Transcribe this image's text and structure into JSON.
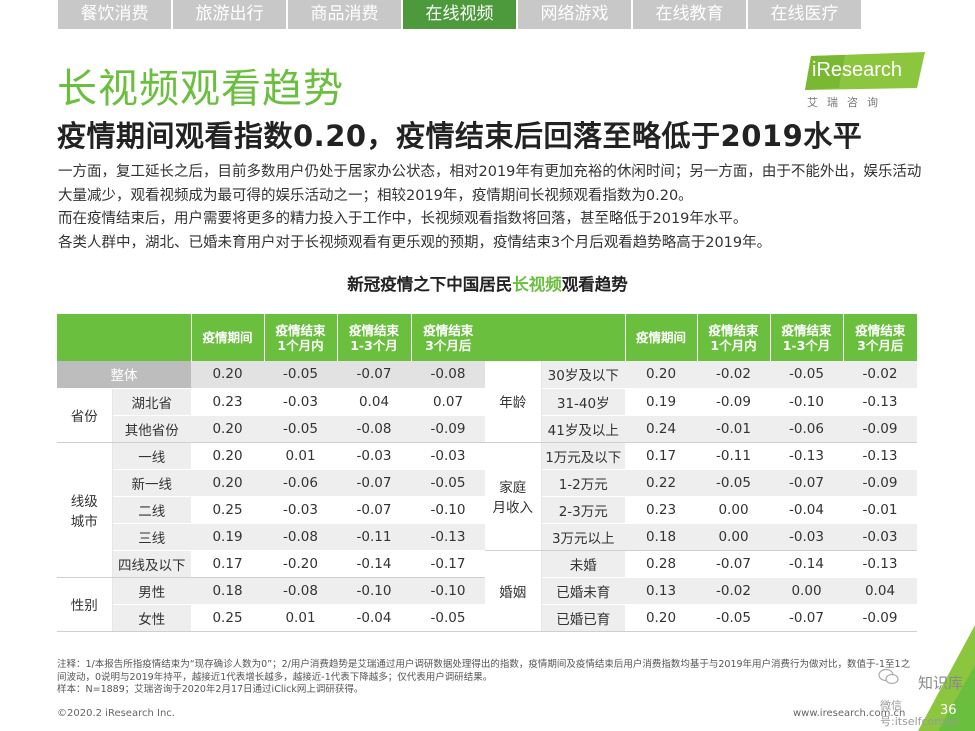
{
  "tabs": [
    "餐饮消费",
    "旅游出行",
    "商品消费",
    "在线视频",
    "网络游戏",
    "在线教育",
    "在线医疗"
  ],
  "logo": {
    "name": "iResearch",
    "sub": "艾瑞咨询"
  },
  "title": "长视频观看趋势",
  "subtitle": "疫情期间观看指数0.20，疫情结束后回落至略低于2019水平",
  "body": [
    "一方面，复工延长之后，目前多数用户仍处于居家办公状态，相对2019年有更加充裕的休闲时间；另一方面，由于不能外出，娱乐活动大量减少，观看视频成为最可得的娱乐活动之一；相较2019年，疫情期间长视频观看指数为0.20。",
    "而在疫情结束后，用户需要将更多的精力投入于工作中，长视频观看指数将回落，甚至略低于2019年水平。",
    "各类人群中，湖北、已婚未育用户对于长视频观看有更乐观的预期，疫情结束3个月后观看趋势略高于2019年。"
  ],
  "table_title": {
    "prefix": "新冠疫情之下中国居民",
    "highlight": "长视频",
    "suffix": "观看趋势"
  },
  "columns": [
    "疫情期间",
    "疫情结束1个月内",
    "疫情结束1-3个月",
    "疫情结束3个月后"
  ],
  "column_lines": [
    [
      "疫情期间"
    ],
    [
      "疫情结束",
      "1个月内"
    ],
    [
      "疫情结束",
      "1-3个月"
    ],
    [
      "疫情结束",
      "3个月后"
    ]
  ],
  "left_table": {
    "overall": {
      "label": "整体",
      "values": [
        "0.20",
        "-0.05",
        "-0.07",
        "-0.08"
      ]
    },
    "groups": [
      {
        "label": "省份",
        "rows": [
          {
            "label": "湖北省",
            "values": [
              "0.23",
              "-0.03",
              "0.04",
              "0.07"
            ]
          },
          {
            "label": "其他省份",
            "values": [
              "0.20",
              "-0.05",
              "-0.08",
              "-0.09"
            ]
          }
        ]
      },
      {
        "label": "线级城市",
        "rows": [
          {
            "label": "一线",
            "values": [
              "0.20",
              "0.01",
              "-0.03",
              "-0.03"
            ]
          },
          {
            "label": "新一线",
            "values": [
              "0.20",
              "-0.06",
              "-0.07",
              "-0.05"
            ]
          },
          {
            "label": "二线",
            "values": [
              "0.25",
              "-0.03",
              "-0.07",
              "-0.10"
            ]
          },
          {
            "label": "三线",
            "values": [
              "0.19",
              "-0.08",
              "-0.11",
              "-0.13"
            ]
          },
          {
            "label": "四线及以下",
            "values": [
              "0.17",
              "-0.20",
              "-0.14",
              "-0.17"
            ]
          }
        ]
      },
      {
        "label": "性别",
        "rows": [
          {
            "label": "男性",
            "values": [
              "0.18",
              "-0.08",
              "-0.10",
              "-0.10"
            ]
          },
          {
            "label": "女性",
            "values": [
              "0.25",
              "0.01",
              "-0.04",
              "-0.05"
            ]
          }
        ]
      }
    ]
  },
  "right_table": {
    "groups": [
      {
        "label": "年龄",
        "rows": [
          {
            "label": "30岁及以下",
            "values": [
              "0.20",
              "-0.02",
              "-0.05",
              "-0.02"
            ]
          },
          {
            "label": "31-40岁",
            "values": [
              "0.19",
              "-0.09",
              "-0.10",
              "-0.13"
            ]
          },
          {
            "label": "41岁及以上",
            "values": [
              "0.24",
              "-0.01",
              "-0.06",
              "-0.09"
            ]
          }
        ]
      },
      {
        "label": "家庭月收入",
        "rows": [
          {
            "label": "1万元及以下",
            "values": [
              "0.17",
              "-0.11",
              "-0.13",
              "-0.13"
            ]
          },
          {
            "label": "1-2万元",
            "values": [
              "0.22",
              "-0.05",
              "-0.07",
              "-0.09"
            ]
          },
          {
            "label": "2-3万元",
            "values": [
              "0.23",
              "0.00",
              "-0.04",
              "-0.01"
            ]
          },
          {
            "label": "3万元以上",
            "values": [
              "0.18",
              "0.00",
              "-0.03",
              "-0.03"
            ]
          }
        ]
      },
      {
        "label": "婚姻",
        "rows": [
          {
            "label": "未婚",
            "values": [
              "0.28",
              "-0.07",
              "-0.14",
              "-0.13"
            ]
          },
          {
            "label": "已婚未育",
            "values": [
              "0.13",
              "-0.02",
              "0.00",
              "0.04"
            ]
          },
          {
            "label": "已婚已育",
            "values": [
              "0.20",
              "-0.05",
              "-0.07",
              "-0.09"
            ]
          }
        ]
      }
    ]
  },
  "footnote": [
    "注释：1/本报告所指疫情结束为“现存确诊人数为0”；2/用户消费趋势是艾瑞通过用户调研数据处理得出的指数，疫情期间及疫情结束后用户消费指数均基于与2019年用户消费行为做对比，数值于-1至1之间波动，0说明与2019年持平，越接近1代表增长越多，越接近-1代表下降越多；仅代表用户调研结果。",
    "样本：N=1889；艾瑞咨询于2020年2月17日通过iClick网上调研获得。"
  ],
  "footer_left": "©2020.2 iResearch Inc.",
  "footer_right": "www.iresearch.com.cn",
  "page_number": "36",
  "watermark": {
    "title": "知识库",
    "sub": "微信号:itselfcomen"
  },
  "colors": {
    "accent": "#6bbf3f",
    "tab_active": "#4d9a3d",
    "tab_inactive": "#c8c8c8"
  }
}
